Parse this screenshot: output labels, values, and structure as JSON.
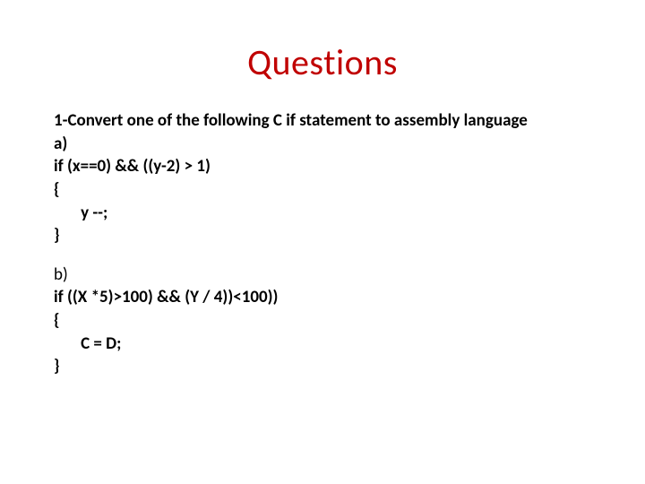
{
  "title": {
    "text": "Questions",
    "color": "#c00000",
    "fontsize": 40
  },
  "body_color": "#000000",
  "body_fontsize": 19,
  "question": {
    "prompt": "1-Convert one of the following C if statement to assembly language",
    "parts": [
      {
        "label": "a)",
        "lines": [
          "if (x==0) && ((y-2) > 1)",
          "{",
          "       y --;",
          "}"
        ]
      },
      {
        "label": "b)",
        "lines": [
          "if ((X *5)>100) && (Y / 4))<100))",
          "{",
          "       C = D;",
          "}"
        ]
      }
    ]
  },
  "background_color": "#ffffff"
}
